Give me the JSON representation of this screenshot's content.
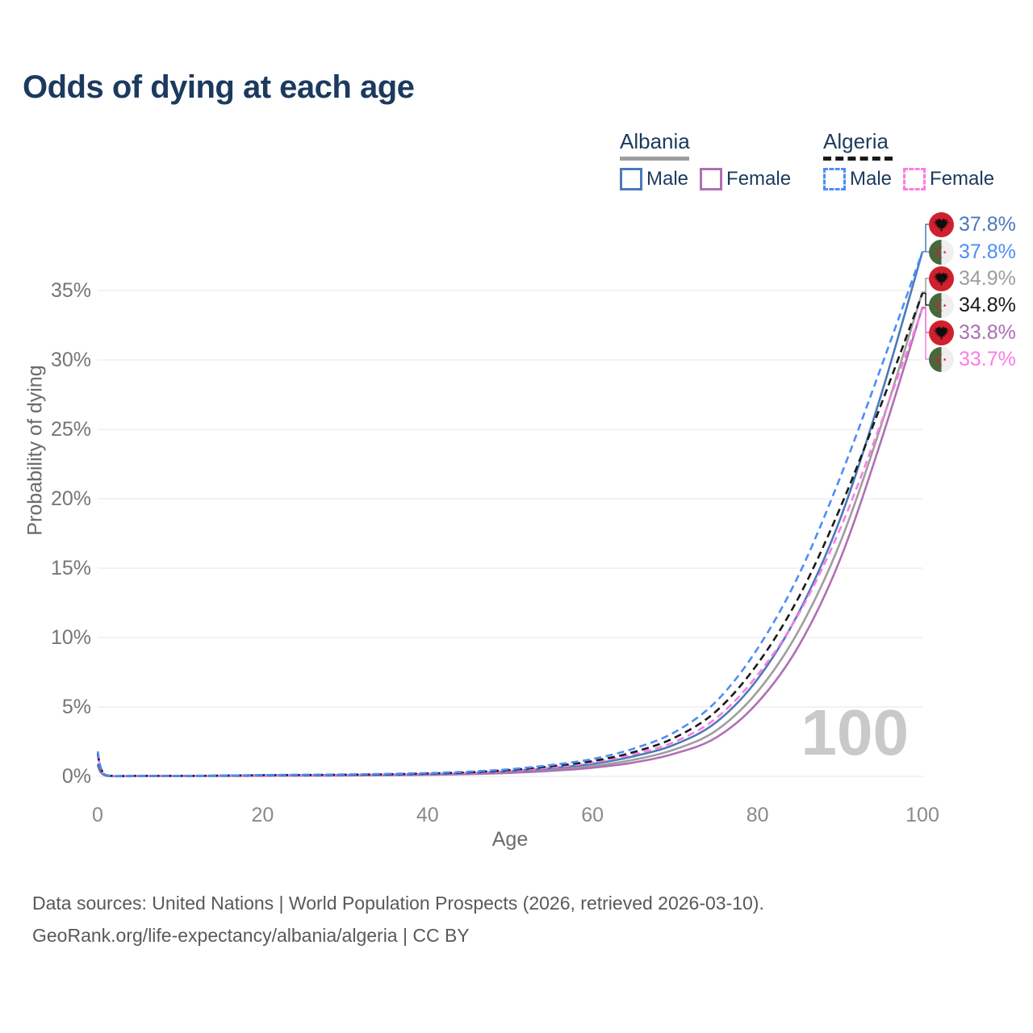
{
  "title": "Odds of dying at each age",
  "legend": {
    "albania": {
      "label": "Albania",
      "male_label": "Male",
      "female_label": "Female",
      "line_style": "solid"
    },
    "algeria": {
      "label": "Algeria",
      "male_label": "Male",
      "female_label": "Female",
      "line_style": "dashed"
    }
  },
  "axes": {
    "y_title": "Probability of dying",
    "x_title": "Age",
    "y_ticks": [
      "0%",
      "5%",
      "10%",
      "15%",
      "20%",
      "25%",
      "30%",
      "35%"
    ],
    "y_tick_values": [
      0,
      5,
      10,
      15,
      20,
      25,
      30,
      35
    ],
    "x_ticks": [
      "0",
      "20",
      "40",
      "60",
      "80",
      "100"
    ],
    "x_tick_values": [
      0,
      20,
      40,
      60,
      80,
      100
    ]
  },
  "age_counter": "100",
  "end_labels": [
    {
      "country": "Albania",
      "flag": "albania-flag",
      "value": "37.8%",
      "color": "#4a7ab8",
      "line_value": 37.8
    },
    {
      "country": "Algeria",
      "flag": "algeria-flag",
      "value": "37.8%",
      "color": "#4d8ef6",
      "line_value": 37.8
    },
    {
      "country": "Albania",
      "flag": "albania-flag",
      "value": "34.9%",
      "color": "#9e9e9e",
      "line_value": 34.9
    },
    {
      "country": "Algeria",
      "flag": "algeria-flag",
      "value": "34.8%",
      "color": "#1a1a1a",
      "line_value": 34.8
    },
    {
      "country": "Albania",
      "flag": "albania-flag",
      "value": "33.8%",
      "color": "#a96fb3",
      "line_value": 33.8
    },
    {
      "country": "Algeria",
      "flag": "algeria-flag",
      "value": "33.7%",
      "color": "#fb7de4",
      "line_value": 33.7
    }
  ],
  "footer": {
    "line1": "Data sources: United Nations | World Population Prospects (2026, retrieved 2026-03-10).",
    "line2": "GeoRank.org/life-expectancy/albania/algeria | CC BY"
  },
  "colors": {
    "title_text": "#1c3a5e",
    "grid": "#ebebeb",
    "tick_text": "#757575",
    "watermark": "#c9c9c9",
    "albania_flag_red": "#d0202e",
    "algeria_flag_green": "#47683c",
    "flag_crescent_red": "#d0202e"
  },
  "chart_data": {
    "type": "line",
    "title": "Odds of dying at each age",
    "xlabel": "Age",
    "ylabel": "Probability of dying",
    "xlim": [
      0,
      100
    ],
    "ylim": [
      0,
      35
    ],
    "grid": "horizontal",
    "legend_position": "top-right",
    "unit": "percent",
    "series": [
      {
        "name": "Albania Male",
        "country": "Albania",
        "sex": "male",
        "style": "solid",
        "color": "#4a7ab8",
        "end_label": "37.8%",
        "points": [
          [
            0,
            0.9
          ],
          [
            1,
            0.06
          ],
          [
            5,
            0.03
          ],
          [
            10,
            0.03
          ],
          [
            15,
            0.05
          ],
          [
            20,
            0.08
          ],
          [
            25,
            0.09
          ],
          [
            30,
            0.1
          ],
          [
            35,
            0.12
          ],
          [
            40,
            0.16
          ],
          [
            45,
            0.24
          ],
          [
            50,
            0.38
          ],
          [
            55,
            0.6
          ],
          [
            60,
            0.9
          ],
          [
            65,
            1.45
          ],
          [
            70,
            2.3
          ],
          [
            75,
            3.9
          ],
          [
            80,
            7.0
          ],
          [
            85,
            11.8
          ],
          [
            90,
            18.5
          ],
          [
            95,
            27.5
          ],
          [
            100,
            37.8
          ]
        ]
      },
      {
        "name": "Algeria Male",
        "country": "Algeria",
        "sex": "male",
        "style": "dashed",
        "color": "#4d8ef6",
        "end_label": "37.8%",
        "points": [
          [
            0,
            1.8
          ],
          [
            1,
            0.1
          ],
          [
            5,
            0.04
          ],
          [
            10,
            0.04
          ],
          [
            15,
            0.06
          ],
          [
            20,
            0.1
          ],
          [
            25,
            0.12
          ],
          [
            30,
            0.14
          ],
          [
            35,
            0.18
          ],
          [
            40,
            0.24
          ],
          [
            45,
            0.34
          ],
          [
            50,
            0.52
          ],
          [
            55,
            0.82
          ],
          [
            60,
            1.25
          ],
          [
            65,
            2.0
          ],
          [
            70,
            3.2
          ],
          [
            75,
            5.4
          ],
          [
            80,
            9.2
          ],
          [
            85,
            14.5
          ],
          [
            90,
            21.5
          ],
          [
            95,
            29.5
          ],
          [
            100,
            37.8
          ]
        ]
      },
      {
        "name": "Albania Both sexes",
        "country": "Albania",
        "sex": "both",
        "style": "solid",
        "color": "#9e9e9e",
        "end_label": "34.9%",
        "points": [
          [
            0,
            0.85
          ],
          [
            1,
            0.05
          ],
          [
            5,
            0.03
          ],
          [
            10,
            0.03
          ],
          [
            15,
            0.04
          ],
          [
            20,
            0.06
          ],
          [
            25,
            0.07
          ],
          [
            30,
            0.08
          ],
          [
            35,
            0.1
          ],
          [
            40,
            0.14
          ],
          [
            45,
            0.2
          ],
          [
            50,
            0.31
          ],
          [
            55,
            0.49
          ],
          [
            60,
            0.75
          ],
          [
            65,
            1.2
          ],
          [
            70,
            1.95
          ],
          [
            75,
            3.3
          ],
          [
            80,
            6.1
          ],
          [
            85,
            10.5
          ],
          [
            90,
            16.8
          ],
          [
            95,
            25.3
          ],
          [
            100,
            34.9
          ]
        ]
      },
      {
        "name": "Algeria Both sexes",
        "country": "Algeria",
        "sex": "both",
        "style": "dashed",
        "color": "#1a1a1a",
        "end_label": "34.8%",
        "points": [
          [
            0,
            1.65
          ],
          [
            1,
            0.09
          ],
          [
            5,
            0.04
          ],
          [
            10,
            0.04
          ],
          [
            15,
            0.05
          ],
          [
            20,
            0.08
          ],
          [
            25,
            0.1
          ],
          [
            30,
            0.12
          ],
          [
            35,
            0.15
          ],
          [
            40,
            0.21
          ],
          [
            45,
            0.29
          ],
          [
            50,
            0.46
          ],
          [
            55,
            0.73
          ],
          [
            60,
            1.1
          ],
          [
            65,
            1.75
          ],
          [
            70,
            2.8
          ],
          [
            75,
            4.7
          ],
          [
            80,
            8.1
          ],
          [
            85,
            12.9
          ],
          [
            90,
            19.3
          ],
          [
            95,
            26.8
          ],
          [
            100,
            34.8
          ]
        ]
      },
      {
        "name": "Albania Female",
        "country": "Albania",
        "sex": "female",
        "style": "solid",
        "color": "#b06fb2",
        "end_label": "33.8%",
        "points": [
          [
            0,
            0.8
          ],
          [
            1,
            0.05
          ],
          [
            5,
            0.02
          ],
          [
            10,
            0.02
          ],
          [
            15,
            0.03
          ],
          [
            20,
            0.04
          ],
          [
            25,
            0.05
          ],
          [
            30,
            0.06
          ],
          [
            35,
            0.08
          ],
          [
            40,
            0.11
          ],
          [
            45,
            0.16
          ],
          [
            50,
            0.25
          ],
          [
            55,
            0.4
          ],
          [
            60,
            0.62
          ],
          [
            65,
            1.0
          ],
          [
            70,
            1.65
          ],
          [
            75,
            2.8
          ],
          [
            80,
            5.3
          ],
          [
            85,
            9.4
          ],
          [
            90,
            15.6
          ],
          [
            95,
            24.2
          ],
          [
            100,
            33.8
          ]
        ]
      },
      {
        "name": "Algeria Female",
        "country": "Algeria",
        "sex": "female",
        "style": "dashed",
        "color": "#fb7de4",
        "end_label": "33.7%",
        "points": [
          [
            0,
            1.5
          ],
          [
            1,
            0.08
          ],
          [
            5,
            0.03
          ],
          [
            10,
            0.03
          ],
          [
            15,
            0.04
          ],
          [
            20,
            0.06
          ],
          [
            25,
            0.08
          ],
          [
            30,
            0.1
          ],
          [
            35,
            0.13
          ],
          [
            40,
            0.18
          ],
          [
            45,
            0.25
          ],
          [
            50,
            0.4
          ],
          [
            55,
            0.64
          ],
          [
            60,
            1.0
          ],
          [
            65,
            1.6
          ],
          [
            70,
            2.5
          ],
          [
            75,
            4.2
          ],
          [
            80,
            7.3
          ],
          [
            85,
            11.7
          ],
          [
            90,
            17.8
          ],
          [
            95,
            25.5
          ],
          [
            100,
            33.7
          ]
        ]
      }
    ]
  }
}
